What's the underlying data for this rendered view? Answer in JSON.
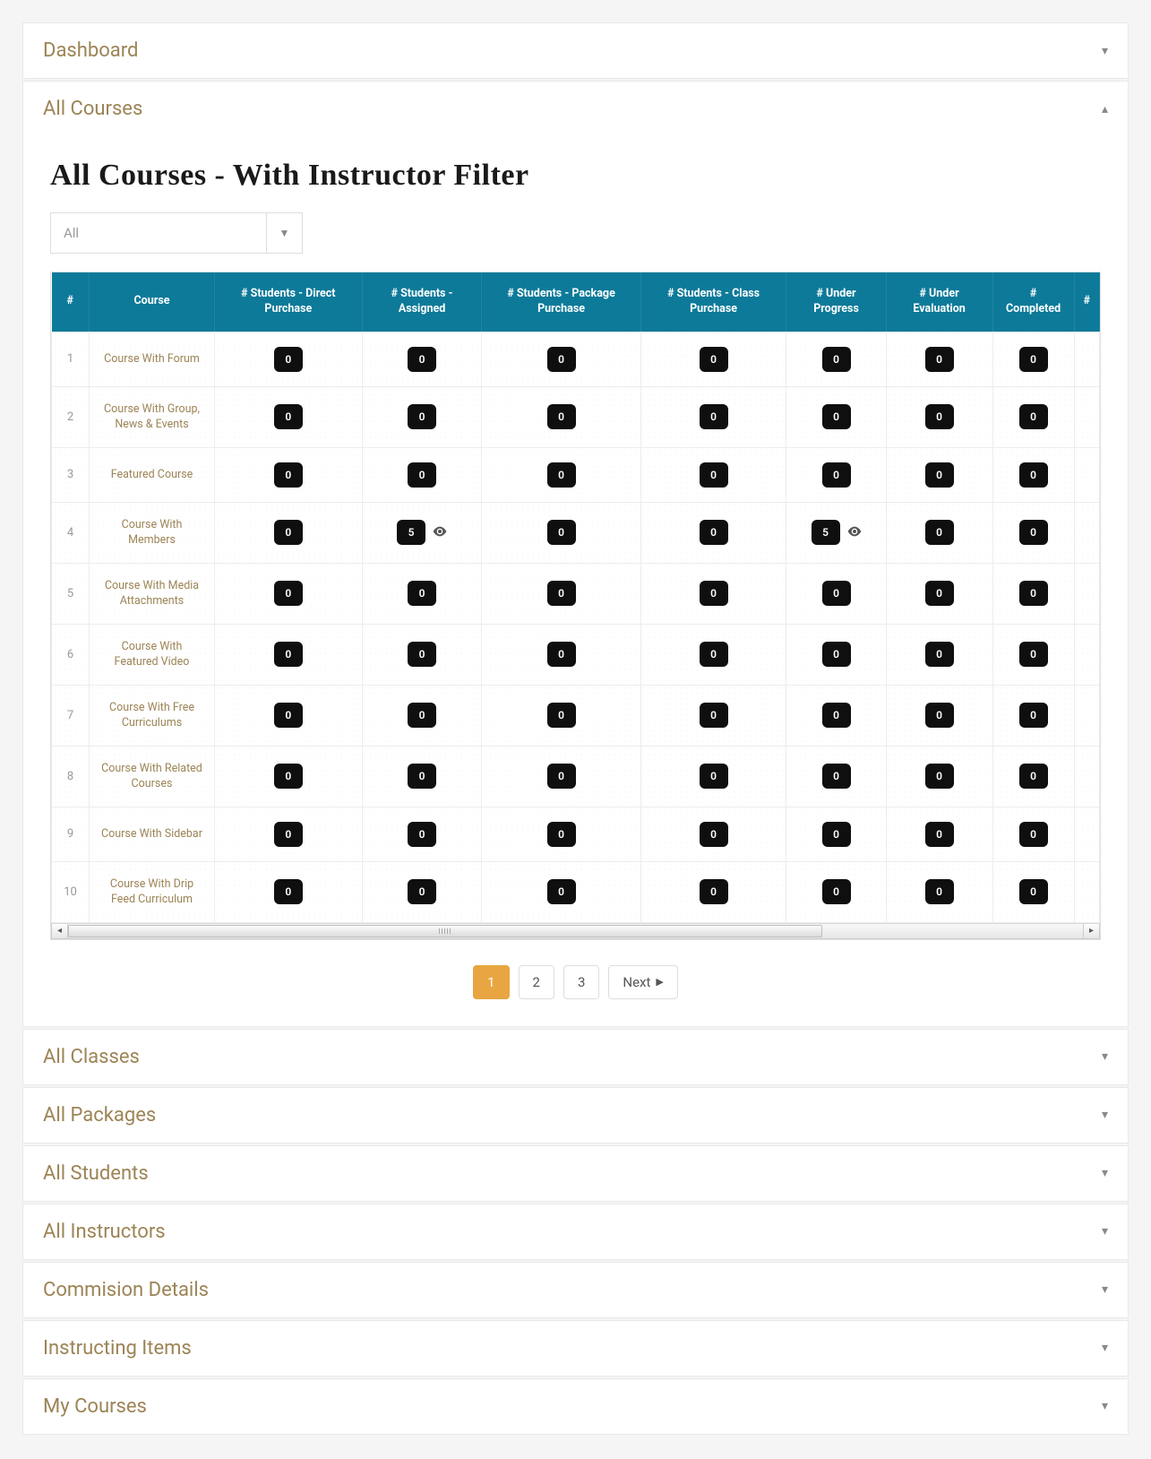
{
  "colors": {
    "accent_text": "#9c8456",
    "table_header_bg": "#0d7a99",
    "badge_bg": "#0f0f0f",
    "page_active_bg": "#e8a542",
    "body_bg": "#f5f5f5",
    "border": "#e8e8e8"
  },
  "accordion": {
    "items": [
      {
        "label": "Dashboard",
        "expanded": false
      },
      {
        "label": "All Courses",
        "expanded": true
      },
      {
        "label": "All Classes",
        "expanded": false
      },
      {
        "label": "All Packages",
        "expanded": false
      },
      {
        "label": "All Students",
        "expanded": false
      },
      {
        "label": "All Instructors",
        "expanded": false
      },
      {
        "label": "Commision Details",
        "expanded": false
      },
      {
        "label": "Instructing Items",
        "expanded": false
      },
      {
        "label": "My Courses",
        "expanded": false
      }
    ]
  },
  "page": {
    "title": "All Courses - With Instructor Filter"
  },
  "filter": {
    "selected": "All"
  },
  "table": {
    "columns": [
      "#",
      "Course",
      "# Students - Direct Purchase",
      "# Students - Assigned",
      "# Students - Package Purchase",
      "# Students - Class Purchase",
      "# Under Progress",
      "# Under Evaluation",
      "# Completed",
      "#"
    ],
    "rows": [
      {
        "idx": "1",
        "course": "Course With Forum",
        "vals": [
          0,
          0,
          0,
          0,
          0,
          0,
          0
        ],
        "eye": []
      },
      {
        "idx": "2",
        "course": "Course With Group, News & Events",
        "vals": [
          0,
          0,
          0,
          0,
          0,
          0,
          0
        ],
        "eye": []
      },
      {
        "idx": "3",
        "course": "Featured Course",
        "vals": [
          0,
          0,
          0,
          0,
          0,
          0,
          0
        ],
        "eye": []
      },
      {
        "idx": "4",
        "course": "Course With Members",
        "vals": [
          0,
          5,
          0,
          0,
          5,
          0,
          0
        ],
        "eye": [
          1,
          4
        ]
      },
      {
        "idx": "5",
        "course": "Course With Media Attachments",
        "vals": [
          0,
          0,
          0,
          0,
          0,
          0,
          0
        ],
        "eye": []
      },
      {
        "idx": "6",
        "course": "Course With Featured Video",
        "vals": [
          0,
          0,
          0,
          0,
          0,
          0,
          0
        ],
        "eye": []
      },
      {
        "idx": "7",
        "course": "Course With Free Curriculums",
        "vals": [
          0,
          0,
          0,
          0,
          0,
          0,
          0
        ],
        "eye": []
      },
      {
        "idx": "8",
        "course": "Course With Related Courses",
        "vals": [
          0,
          0,
          0,
          0,
          0,
          0,
          0
        ],
        "eye": []
      },
      {
        "idx": "9",
        "course": "Course With Sidebar",
        "vals": [
          0,
          0,
          0,
          0,
          0,
          0,
          0
        ],
        "eye": []
      },
      {
        "idx": "10",
        "course": "Course With Drip Feed Curriculum",
        "vals": [
          0,
          0,
          0,
          0,
          0,
          0,
          0
        ],
        "eye": []
      }
    ]
  },
  "pagination": {
    "pages": [
      "1",
      "2",
      "3"
    ],
    "active": "1",
    "next_label": "Next"
  }
}
